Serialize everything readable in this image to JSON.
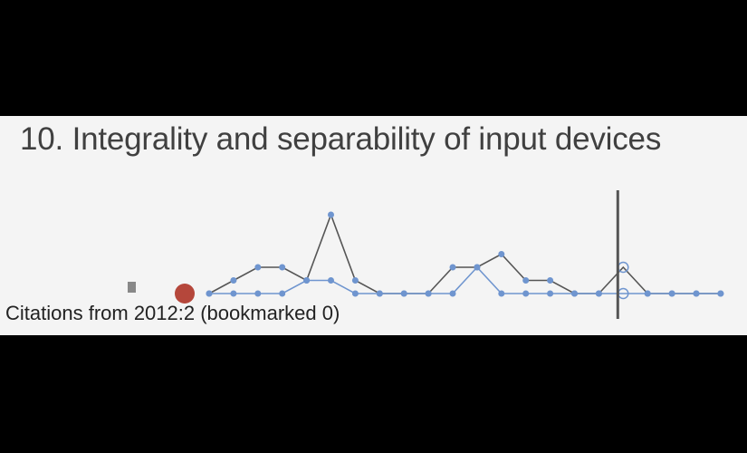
{
  "item": {
    "title": "10. Integrality and separability of input devices",
    "citations_text": "Citations from 2012:2 (bookmarked 0)"
  },
  "chart_data": {
    "type": "line",
    "title": "",
    "xlabel": "",
    "ylabel": "",
    "grid": false,
    "series": [
      {
        "color": "#555555",
        "values": [
          0,
          1,
          2,
          2,
          1,
          6,
          1,
          0,
          0,
          0,
          2,
          2,
          3,
          1,
          1,
          0,
          0,
          2,
          0,
          0,
          0,
          0
        ]
      },
      {
        "color": "#6f95cf",
        "values": [
          0,
          0,
          0,
          0,
          1,
          1,
          0,
          0,
          0,
          0,
          0,
          2,
          0,
          0,
          0,
          0,
          0,
          0,
          0,
          0,
          0,
          0
        ]
      }
    ],
    "current_year_index": 17,
    "markers": {
      "bookmark_square_color": "#888888",
      "dot_color": "#b5473b"
    }
  }
}
